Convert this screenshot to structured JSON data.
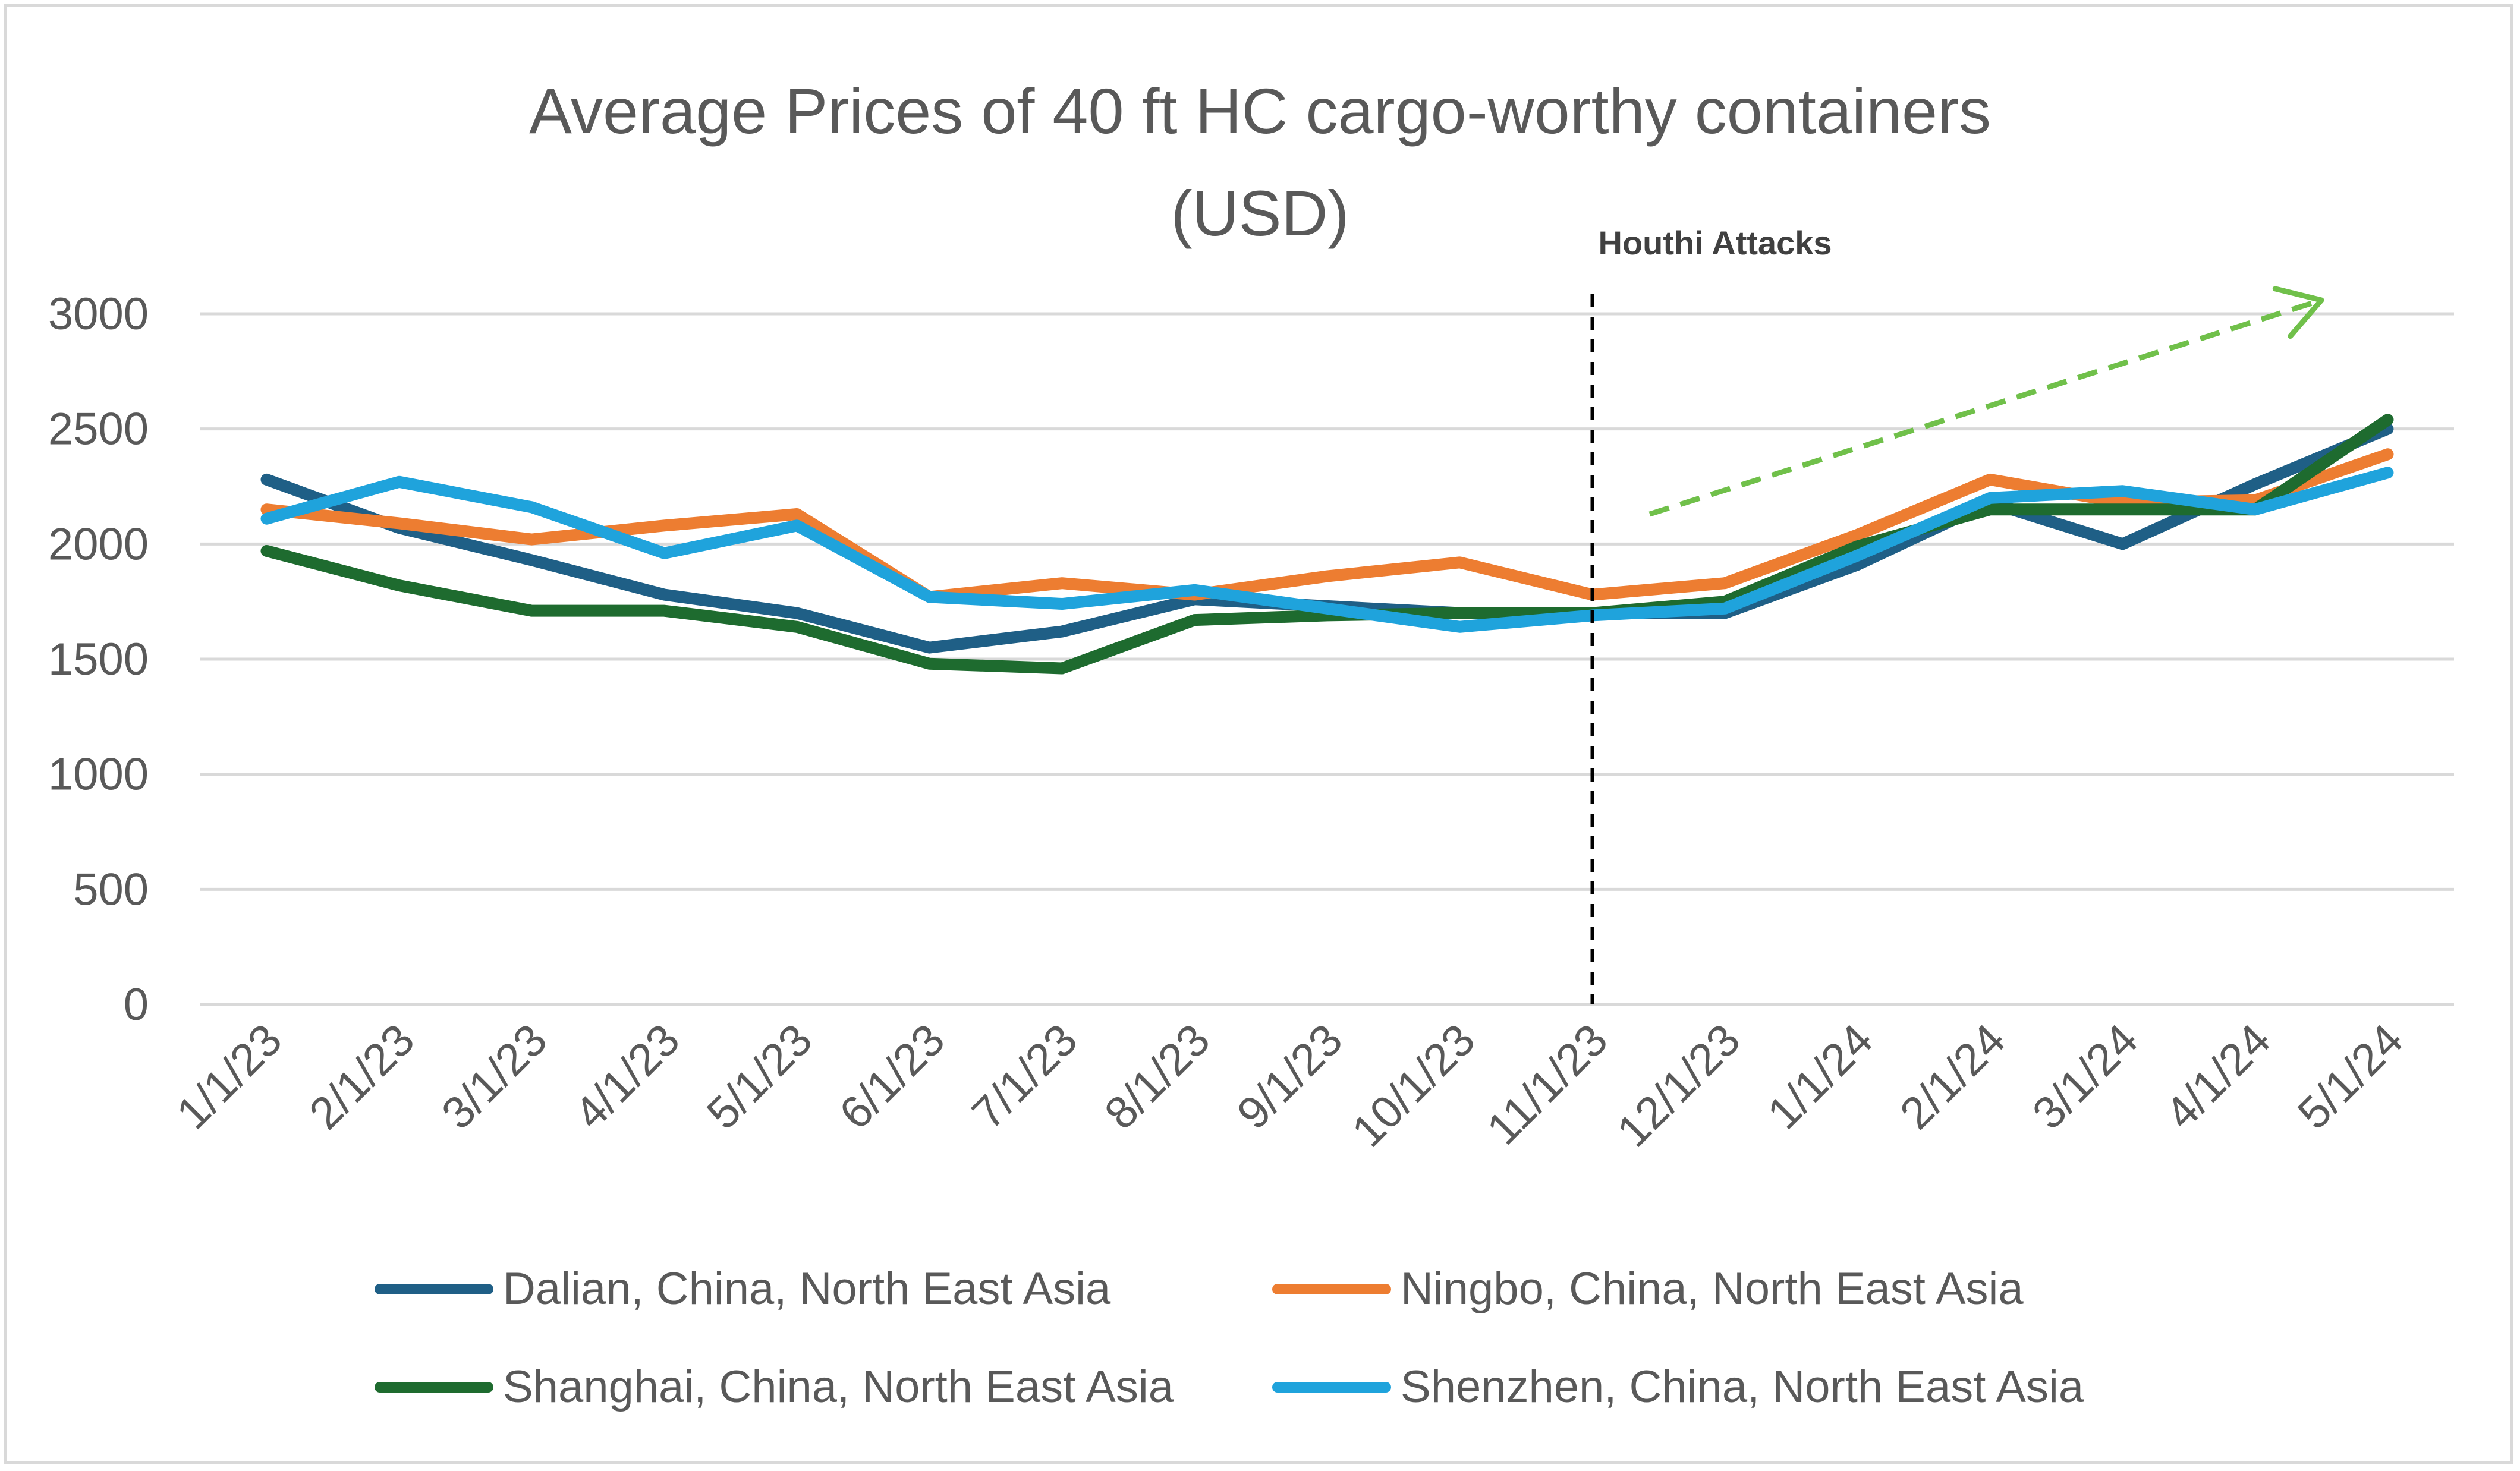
{
  "chart_data": {
    "type": "line",
    "title": "Average Prices of 40 ft HC cargo-worthy containers",
    "subtitle": "(USD)",
    "xlabel": "",
    "ylabel": "",
    "categories": [
      "1/1/23",
      "2/1/23",
      "3/1/23",
      "4/1/23",
      "5/1/23",
      "6/1/23",
      "7/1/23",
      "8/1/23",
      "9/1/23",
      "10/1/23",
      "11/1/23",
      "12/1/23",
      "1/1/24",
      "2/1/24",
      "3/1/24",
      "4/1/24",
      "5/1/24"
    ],
    "ylim": [
      0,
      3000
    ],
    "yticks": [
      0,
      500,
      1000,
      1500,
      2000,
      2500,
      3000
    ],
    "grid": true,
    "legend_position": "bottom",
    "series": [
      {
        "name": "Dalian, China, North East Asia",
        "color": "#1f5f86",
        "values": [
          2280,
          2070,
          1930,
          1780,
          1700,
          1550,
          1620,
          1760,
          1730,
          1700,
          1700,
          1700,
          1910,
          2180,
          2000,
          2260,
          2500
        ]
      },
      {
        "name": "Ningbo, China, North East Asia",
        "color": "#ed7d31",
        "values": [
          2150,
          2090,
          2020,
          2080,
          2130,
          1770,
          1830,
          1780,
          1860,
          1920,
          1780,
          1830,
          2040,
          2280,
          2180,
          2190,
          2390
        ]
      },
      {
        "name": "Shanghai, China, North East Asia",
        "color": "#1e6b2f",
        "values": [
          1970,
          1820,
          1710,
          1710,
          1640,
          1480,
          1460,
          1670,
          1690,
          1700,
          1700,
          1750,
          1990,
          2150,
          2150,
          2150,
          2540
        ]
      },
      {
        "name": "Shenzhen, China, North East Asia",
        "color": "#1fa3dc",
        "values": [
          2110,
          2270,
          2160,
          1960,
          2080,
          1770,
          1740,
          1800,
          1720,
          1640,
          1690,
          1720,
          1950,
          2200,
          2230,
          2150,
          2310
        ]
      }
    ],
    "annotations": [
      {
        "text": "Houthi Attacks",
        "x": "11/1/23",
        "style": "dashed vertical line",
        "color": "#000000"
      },
      {
        "text": "",
        "style": "dashed upward trend arrow",
        "color": "#70c04a"
      }
    ]
  }
}
